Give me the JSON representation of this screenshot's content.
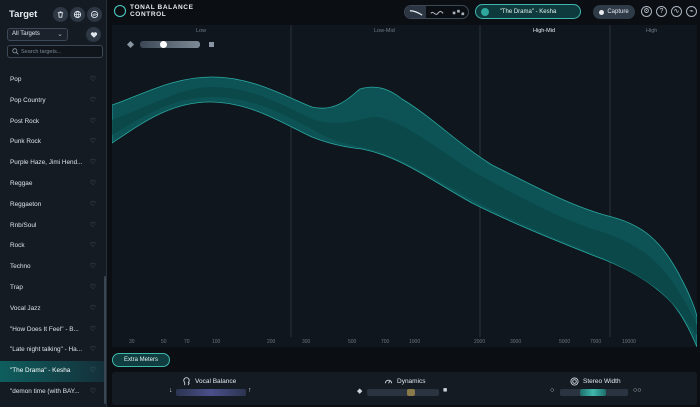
{
  "sidebar": {
    "title": "Target",
    "filter": "All Targets",
    "search_placeholder": "Search targets...",
    "items": [
      {
        "label": "Pop"
      },
      {
        "label": "Pop Country"
      },
      {
        "label": "Post Rock"
      },
      {
        "label": "Punk Rock"
      },
      {
        "label": "Purple Haze, Jimi Hend..."
      },
      {
        "label": "Reggae"
      },
      {
        "label": "Reggaeton"
      },
      {
        "label": "Rnb/Soul"
      },
      {
        "label": "Rock"
      },
      {
        "label": "Techno"
      },
      {
        "label": "Trap"
      },
      {
        "label": "Vocal Jazz"
      },
      {
        "label": "\"How Does It Feel\" - B..."
      },
      {
        "label": "\"Late night talking\" - Ha..."
      },
      {
        "label": "\"The Drama\" - Kesha",
        "active": true
      },
      {
        "label": "\"demon time (with BAY..."
      }
    ]
  },
  "header": {
    "logo_line1": "TONAL BALANCE",
    "logo_line2": "CONTROL",
    "preset": "\"The Drama\" - Kesha",
    "capture": "Capture"
  },
  "graph": {
    "bands": [
      "Low",
      "Low-Mid",
      "High-Mid",
      "High"
    ],
    "active_band": "High-Mid",
    "freq_labels": [
      "30",
      "50",
      "70",
      "100",
      "200",
      "300",
      "500",
      "700",
      "1000",
      "2000",
      "3000",
      "5000",
      "7000",
      "10000"
    ]
  },
  "extra_meters_label": "Extra Meters",
  "meters": {
    "vocal": "Vocal Balance",
    "dynamics": "Dynamics",
    "stereo": "Stereo Width"
  },
  "colors": {
    "accent": "#3fb7ad",
    "band_fill": "#0f5a5c"
  }
}
